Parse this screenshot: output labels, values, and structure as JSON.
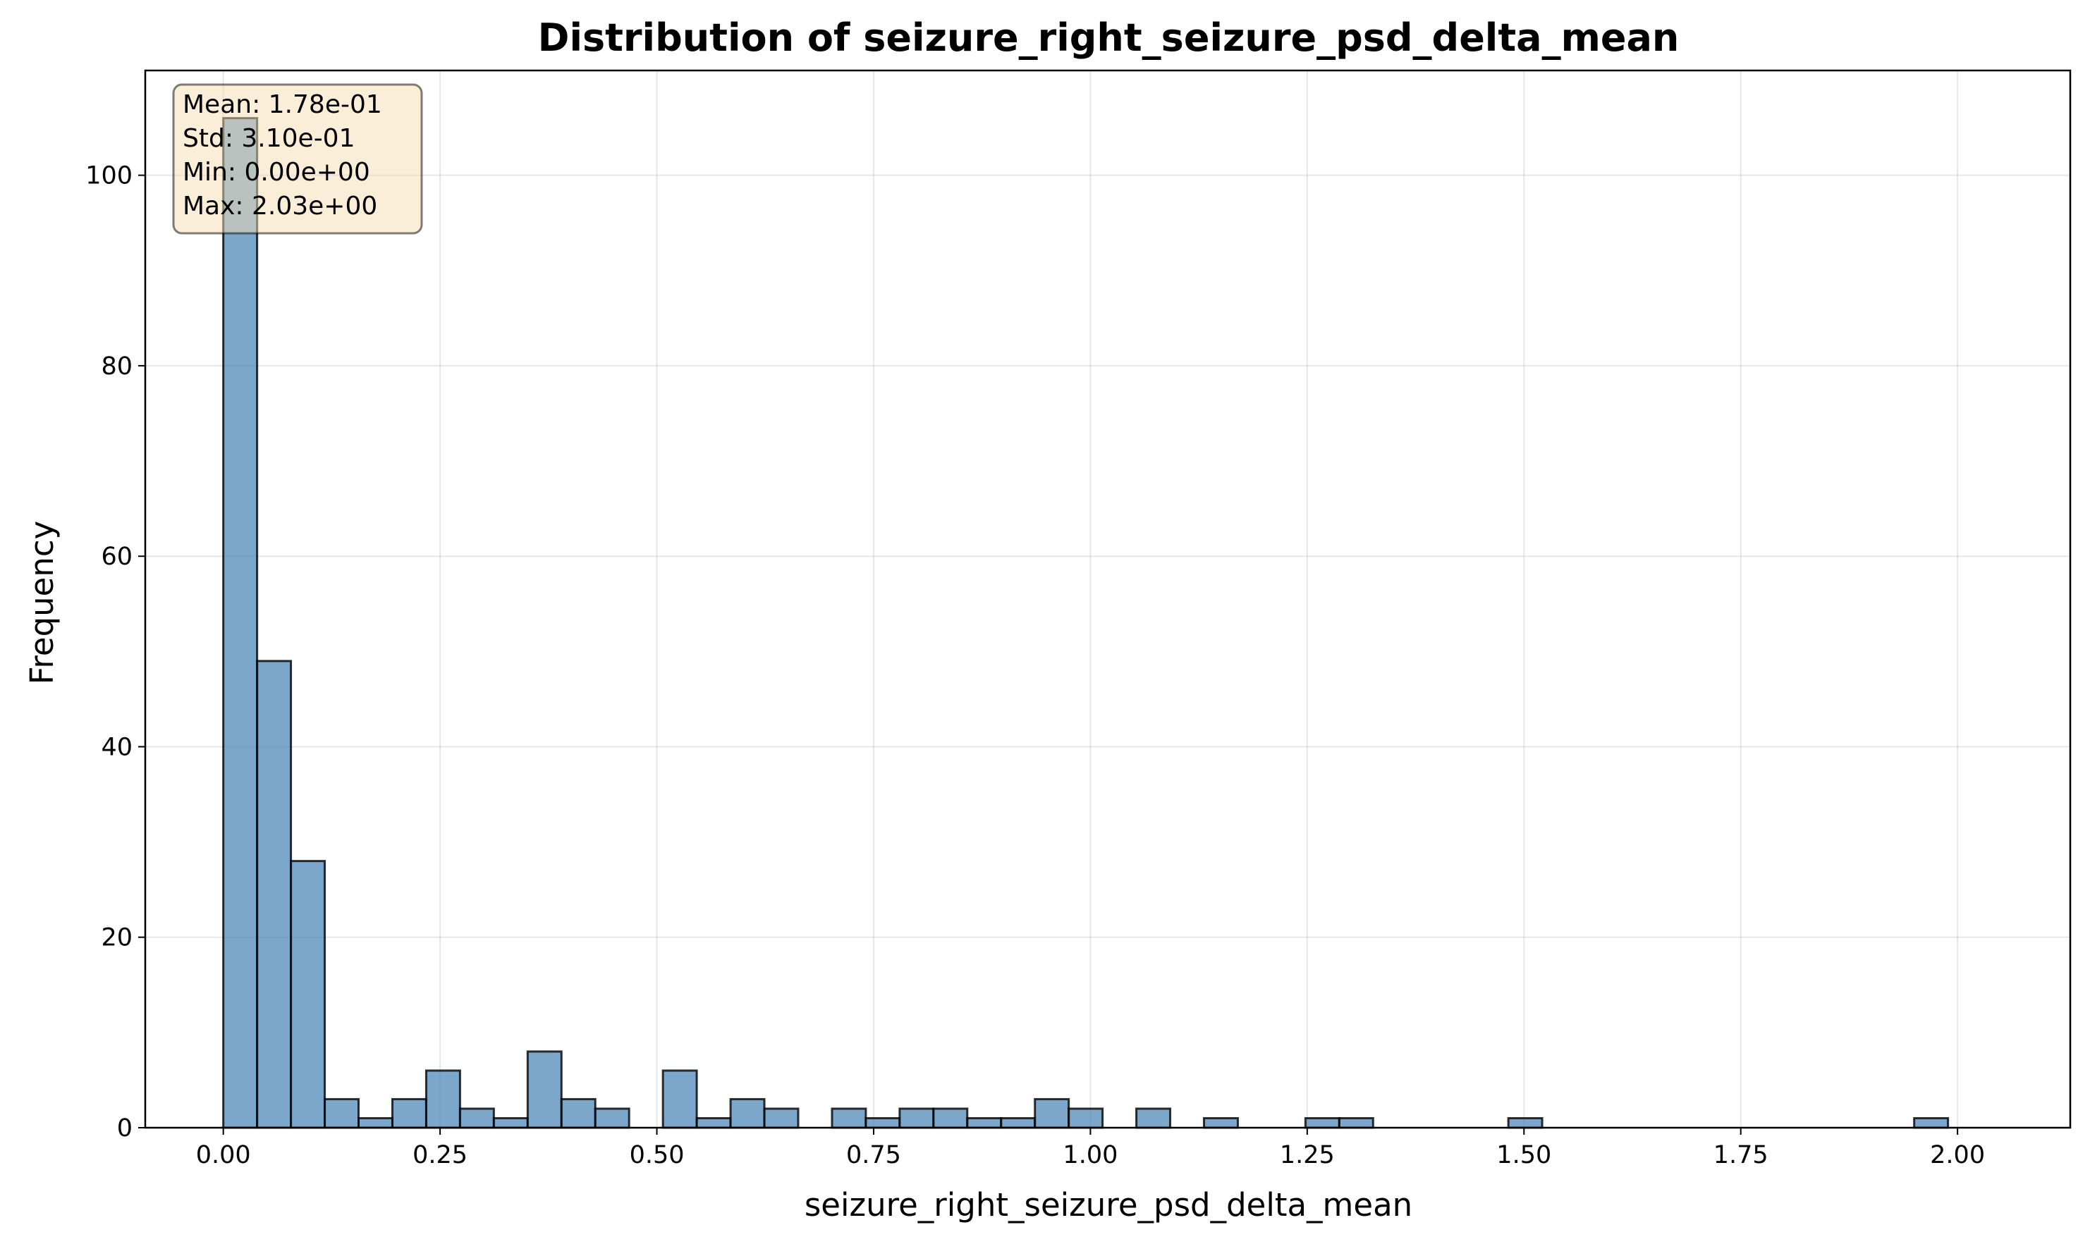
{
  "chart_data": {
    "type": "bar",
    "title": "Distribution of seizure_right_seizure_psd_delta_mean",
    "xlabel": "seizure_right_seizure_psd_delta_mean",
    "ylabel": "Frequency",
    "xlim": [
      -0.09,
      2.13
    ],
    "ylim": [
      0,
      111
    ],
    "xticks": [
      0.0,
      0.25,
      0.5,
      0.75,
      1.0,
      1.25,
      1.5,
      1.75,
      2.0
    ],
    "xtick_labels": [
      "0.00",
      "0.25",
      "0.50",
      "0.75",
      "1.00",
      "1.25",
      "1.50",
      "1.75",
      "2.00"
    ],
    "yticks": [
      0,
      20,
      40,
      60,
      80,
      100
    ],
    "ytick_labels": [
      "0",
      "20",
      "40",
      "60",
      "80",
      "100"
    ],
    "grid": true,
    "bin_start": 0.0,
    "bin_width": 0.039,
    "counts": [
      106,
      49,
      28,
      3,
      1,
      3,
      6,
      2,
      1,
      8,
      3,
      2,
      0,
      6,
      1,
      3,
      2,
      0,
      2,
      1,
      2,
      2,
      1,
      1,
      3,
      2,
      0,
      2,
      0,
      1,
      0,
      0,
      1,
      1,
      0,
      0,
      0,
      0,
      1,
      0,
      0,
      0,
      0,
      0,
      0,
      0,
      0,
      0,
      0,
      0,
      1
    ],
    "bar_color": "#4682b4",
    "stats_box": {
      "placement": "top-left",
      "lines": [
        "Mean: 1.78e-01",
        "Std: 3.10e-01",
        "Min: 0.00e+00",
        "Max: 2.03e+00"
      ]
    }
  }
}
